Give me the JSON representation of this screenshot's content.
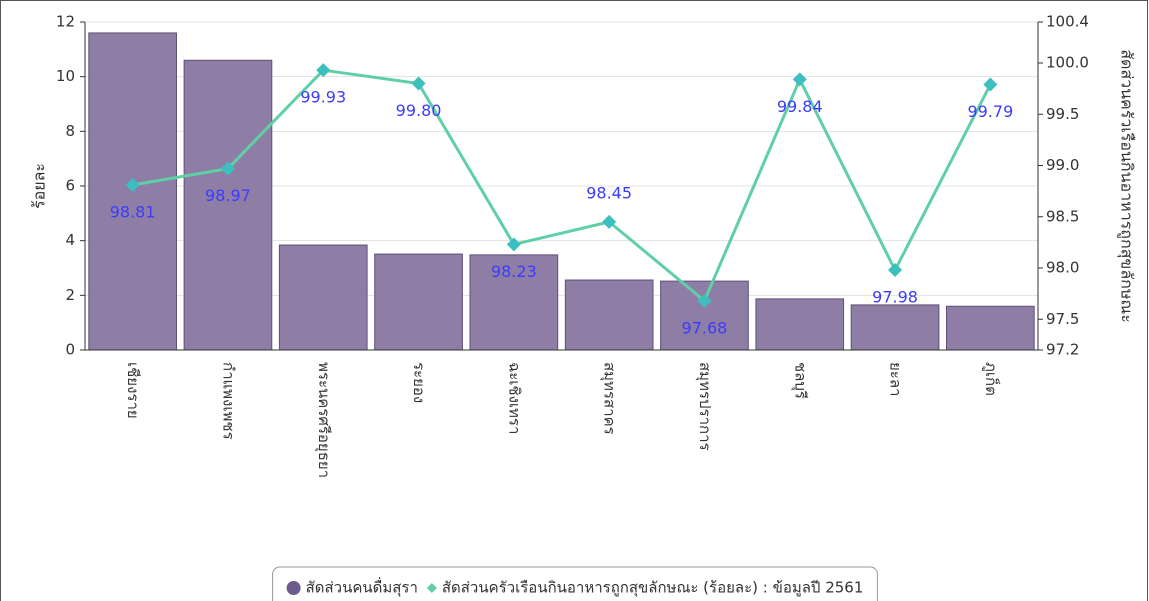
{
  "chart_data": {
    "type": "bar-line",
    "categories": [
      "เชียงราย",
      "กำแพงเพชร",
      "พระนครศรีอยุธยา",
      "ระยอง",
      "ฉะเชิงเทรา",
      "สมุทรสาคร",
      "สมุทรปราการ",
      "ชลบุรี",
      "ยะลา",
      "ภูเก็ต"
    ],
    "y_label": "ร้อยละ",
    "y2_label": "สัดส่วนครัวเรือนกินอาหารถูกสุขลักษณะ",
    "ylim": [
      0,
      12
    ],
    "yticks": [
      0,
      2,
      4,
      6,
      8,
      10,
      12
    ],
    "y2lim": [
      97.2,
      100.4
    ],
    "y2ticks": [
      97.2,
      97.5,
      {
        "value": 98,
        "label": "98.0"
      },
      98.5,
      {
        "value": 99,
        "label": "99.0"
      },
      99.5,
      {
        "value": 100,
        "label": "100.0"
      },
      100.4
    ],
    "grid": true,
    "series": [
      {
        "name": "สัดส่วนคนดื่มสุรา",
        "color": "#8e7ea6",
        "values": [
          11.6,
          10.6,
          3.84,
          3.51,
          3.48,
          2.56,
          2.52,
          1.87,
          1.65,
          1.6
        ]
      },
      {
        "name": "สัดส่วนครัวเรือนกินอาหารถูกสุขลักษณะ (ร้อยละ) : ข้อมูลปี 2561",
        "color": "#5fcfa8",
        "axis": "y2",
        "values": [
          98.81,
          98.97,
          99.93,
          99.8,
          98.23,
          98.45,
          97.68,
          99.84,
          97.98,
          99.79
        ],
        "value_labels": [
          "98.81",
          "98.97",
          "99.93",
          "99.80",
          "98.23",
          "98.45",
          "97.68",
          "99.84",
          "97.98",
          "99.79"
        ]
      }
    ]
  }
}
